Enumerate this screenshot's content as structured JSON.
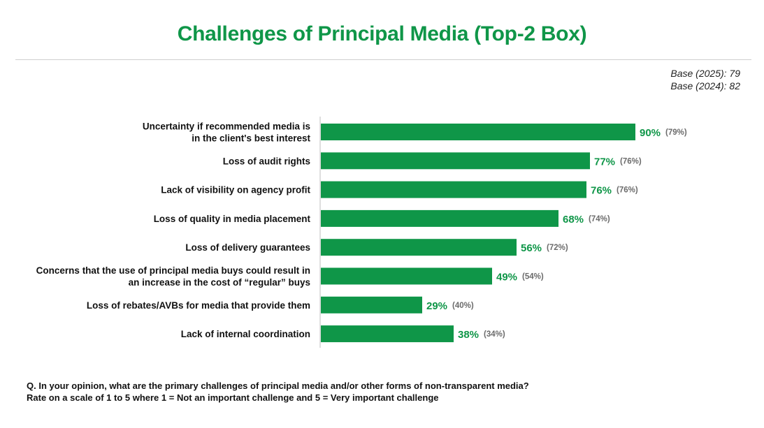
{
  "chart_data": {
    "type": "bar",
    "orientation": "horizontal",
    "title": "Challenges of Principal Media (Top-2 Box)",
    "categories": [
      "Uncertainty if recommended media is in the client's best interest",
      "Loss of audit rights",
      "Lack of visibility on agency profit",
      "Loss of quality in media placement",
      "Loss of delivery guarantees",
      "Concerns that the use of principal media buys could result in an increase in the cost of “regular” buys",
      "Loss of rebates/AVBs for media that provide them",
      "Lack of internal coordination"
    ],
    "category_lines": [
      [
        "Uncertainty if recommended media is",
        "in the client's best interest"
      ],
      [
        "Loss of audit rights"
      ],
      [
        "Lack of visibility on agency profit"
      ],
      [
        "Loss of quality in media placement"
      ],
      [
        "Loss of delivery guarantees"
      ],
      [
        "Concerns that the use of principal media buys could result in",
        "an increase in the cost of “regular” buys"
      ],
      [
        "Loss of rebates/AVBs for media that provide them"
      ],
      [
        "Lack of internal coordination"
      ]
    ],
    "series": [
      {
        "name": "2025",
        "values": [
          90,
          77,
          76,
          68,
          56,
          49,
          29,
          38
        ],
        "labels": [
          "90%",
          "77%",
          "76%",
          "68%",
          "56%",
          "49%",
          "29%",
          "38%"
        ]
      },
      {
        "name": "2024",
        "values": [
          79,
          76,
          76,
          74,
          72,
          54,
          40,
          34
        ],
        "labels": [
          "(79%)",
          "(76%)",
          "(76%)",
          "(74%)",
          "(72%)",
          "(54%)",
          "(40%)",
          "(34%)"
        ]
      }
    ],
    "xlim": [
      0,
      100
    ],
    "grid": false,
    "legend": "none",
    "colors": {
      "bar": "#0f9648",
      "value_label": "#0f9648",
      "prior_label": "#6b6b6b",
      "category_label": "#111111"
    }
  },
  "base": {
    "line_2025": "Base (2025): 79",
    "line_2024": "Base (2024): 82"
  },
  "footnote": {
    "line1": "Q. In your opinion, what are the primary challenges of principal media and/or other forms of non-transparent media?",
    "line2": "Rate on a scale of 1 to 5 where 1 = Not an important challenge and 5 = Very important challenge"
  }
}
